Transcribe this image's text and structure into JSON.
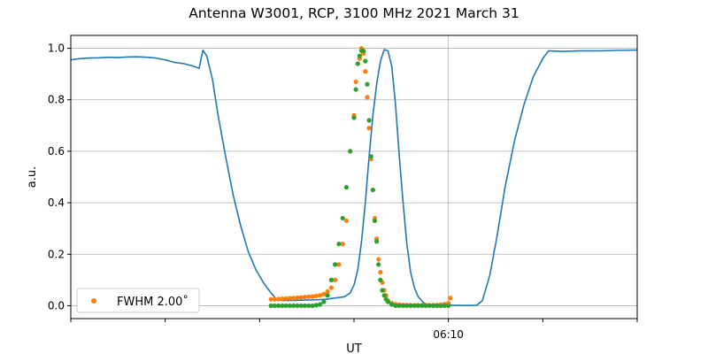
{
  "chart_data": {
    "type": "line",
    "title": "Antenna W3001, RCP, 3100 MHz 2021 March 31",
    "xlabel": "UT",
    "ylabel": "a.u.",
    "xlim_min": [
      0,
      30
    ],
    "ylim": [
      -0.05,
      1.05
    ],
    "yticks": [
      0.0,
      0.2,
      0.4,
      0.6,
      0.8,
      1.0
    ],
    "ytick_labels": [
      "0.0",
      "0.2",
      "0.4",
      "0.6",
      "0.8",
      "1.0"
    ],
    "xticks_min": [
      0,
      5,
      10,
      15,
      20,
      25,
      30
    ],
    "xtick_labels": [
      "",
      "",
      "",
      "",
      "06:10",
      "",
      ""
    ],
    "grid": true,
    "legend": {
      "placement": "lower-left",
      "label": "FWHM 2.00$^\\circ$",
      "label_text": "FWHM 2.00˚"
    },
    "colors": {
      "line": "#1f77b4",
      "dots_a": "#ff7f0e",
      "dots_b": "#2ca02c",
      "grid": "#b0b0b0"
    },
    "series": [
      {
        "kind": "line",
        "color": "#1f77b4",
        "points": [
          [
            0,
            0.955
          ],
          [
            0.5,
            0.96
          ],
          [
            1,
            0.962
          ],
          [
            1.5,
            0.963
          ],
          [
            2,
            0.965
          ],
          [
            2.5,
            0.964
          ],
          [
            3,
            0.966
          ],
          [
            3.5,
            0.967
          ],
          [
            4,
            0.965
          ],
          [
            4.5,
            0.962
          ],
          [
            5,
            0.955
          ],
          [
            5.5,
            0.945
          ],
          [
            6,
            0.94
          ],
          [
            6.5,
            0.93
          ],
          [
            6.8,
            0.922
          ],
          [
            6.9,
            0.96
          ],
          [
            7.0,
            0.992
          ],
          [
            7.2,
            0.97
          ],
          [
            7.5,
            0.88
          ],
          [
            7.8,
            0.74
          ],
          [
            8.2,
            0.58
          ],
          [
            8.6,
            0.43
          ],
          [
            9.0,
            0.31
          ],
          [
            9.4,
            0.21
          ],
          [
            9.8,
            0.14
          ],
          [
            10.2,
            0.09
          ],
          [
            10.6,
            0.05
          ],
          [
            10.9,
            0.025
          ],
          [
            11.2,
            0.02
          ],
          [
            12,
            0.021
          ],
          [
            13,
            0.023
          ],
          [
            13.5,
            0.025
          ],
          [
            14.0,
            0.03
          ],
          [
            14.5,
            0.035
          ],
          [
            14.8,
            0.05
          ],
          [
            15.0,
            0.08
          ],
          [
            15.2,
            0.14
          ],
          [
            15.4,
            0.25
          ],
          [
            15.6,
            0.4
          ],
          [
            15.8,
            0.58
          ],
          [
            16.0,
            0.74
          ],
          [
            16.2,
            0.86
          ],
          [
            16.4,
            0.95
          ],
          [
            16.6,
            0.995
          ],
          [
            16.8,
            0.99
          ],
          [
            17.0,
            0.93
          ],
          [
            17.2,
            0.78
          ],
          [
            17.4,
            0.58
          ],
          [
            17.6,
            0.4
          ],
          [
            17.8,
            0.24
          ],
          [
            18.0,
            0.13
          ],
          [
            18.2,
            0.07
          ],
          [
            18.4,
            0.035
          ],
          [
            18.7,
            0.01
          ],
          [
            19.0,
            0.004
          ],
          [
            20,
            0.002
          ],
          [
            21,
            0.001
          ],
          [
            21.5,
            0.002
          ],
          [
            21.8,
            0.02
          ],
          [
            22.2,
            0.12
          ],
          [
            22.6,
            0.28
          ],
          [
            23.0,
            0.46
          ],
          [
            23.5,
            0.64
          ],
          [
            24.0,
            0.78
          ],
          [
            24.5,
            0.89
          ],
          [
            25.0,
            0.96
          ],
          [
            25.3,
            0.99
          ],
          [
            26,
            0.988
          ],
          [
            27,
            0.99
          ],
          [
            28,
            0.99
          ],
          [
            29,
            0.992
          ],
          [
            30,
            0.993
          ]
        ]
      },
      {
        "kind": "dots",
        "color": "#ff7f0e",
        "points": [
          [
            10.6,
            0.025
          ],
          [
            10.8,
            0.025
          ],
          [
            11.0,
            0.026
          ],
          [
            11.2,
            0.027
          ],
          [
            11.4,
            0.028
          ],
          [
            11.6,
            0.029
          ],
          [
            11.8,
            0.03
          ],
          [
            12.0,
            0.031
          ],
          [
            12.2,
            0.032
          ],
          [
            12.4,
            0.034
          ],
          [
            12.6,
            0.035
          ],
          [
            12.8,
            0.036
          ],
          [
            13.0,
            0.038
          ],
          [
            13.2,
            0.04
          ],
          [
            13.4,
            0.045
          ],
          [
            13.6,
            0.055
          ],
          [
            13.8,
            0.07
          ],
          [
            14.0,
            0.1
          ],
          [
            14.2,
            0.16
          ],
          [
            14.4,
            0.24
          ],
          [
            14.6,
            0.33
          ],
          [
            14.8,
            0.6
          ],
          [
            15.0,
            0.74
          ],
          [
            15.1,
            0.87
          ],
          [
            15.3,
            0.96
          ],
          [
            15.4,
            1.0
          ],
          [
            15.5,
            0.98
          ],
          [
            15.6,
            0.91
          ],
          [
            15.7,
            0.81
          ],
          [
            15.8,
            0.69
          ],
          [
            15.9,
            0.57
          ],
          [
            16.0,
            0.45
          ],
          [
            16.1,
            0.34
          ],
          [
            16.2,
            0.26
          ],
          [
            16.3,
            0.18
          ],
          [
            16.4,
            0.13
          ],
          [
            16.5,
            0.09
          ],
          [
            16.6,
            0.06
          ],
          [
            16.7,
            0.04
          ],
          [
            16.8,
            0.02
          ],
          [
            17.0,
            0.01
          ],
          [
            17.2,
            0.006
          ],
          [
            17.4,
            0.004
          ],
          [
            17.6,
            0.003
          ],
          [
            17.8,
            0.002
          ],
          [
            18.0,
            0.002
          ],
          [
            18.2,
            0.002
          ],
          [
            18.4,
            0.002
          ],
          [
            18.6,
            0.002
          ],
          [
            18.8,
            0.002
          ],
          [
            19.0,
            0.002
          ],
          [
            19.2,
            0.002
          ],
          [
            19.4,
            0.003
          ],
          [
            19.6,
            0.004
          ],
          [
            19.8,
            0.006
          ],
          [
            20.0,
            0.01
          ],
          [
            20.1,
            0.03
          ]
        ]
      },
      {
        "kind": "dots",
        "color": "#2ca02c",
        "points": [
          [
            10.6,
            0.0
          ],
          [
            10.8,
            0.0
          ],
          [
            11.0,
            0.0
          ],
          [
            11.2,
            0.0
          ],
          [
            11.4,
            0.0
          ],
          [
            11.6,
            0.0
          ],
          [
            11.8,
            0.0
          ],
          [
            12.0,
            0.0
          ],
          [
            12.2,
            0.0
          ],
          [
            12.4,
            0.0
          ],
          [
            12.6,
            0.0
          ],
          [
            12.8,
            0.0
          ],
          [
            13.0,
            0.002
          ],
          [
            13.2,
            0.005
          ],
          [
            13.4,
            0.015
          ],
          [
            13.6,
            0.04
          ],
          [
            13.8,
            0.1
          ],
          [
            14.0,
            0.16
          ],
          [
            14.2,
            0.24
          ],
          [
            14.4,
            0.34
          ],
          [
            14.6,
            0.46
          ],
          [
            14.8,
            0.6
          ],
          [
            15.0,
            0.73
          ],
          [
            15.1,
            0.84
          ],
          [
            15.2,
            0.94
          ],
          [
            15.3,
            0.97
          ],
          [
            15.4,
            0.99
          ],
          [
            15.5,
            0.99
          ],
          [
            15.6,
            0.95
          ],
          [
            15.7,
            0.86
          ],
          [
            15.8,
            0.72
          ],
          [
            15.9,
            0.58
          ],
          [
            16.0,
            0.45
          ],
          [
            16.1,
            0.33
          ],
          [
            16.2,
            0.25
          ],
          [
            16.3,
            0.16
          ],
          [
            16.4,
            0.1
          ],
          [
            16.5,
            0.06
          ],
          [
            16.6,
            0.04
          ],
          [
            16.7,
            0.025
          ],
          [
            16.8,
            0.015
          ],
          [
            17.0,
            0.005
          ],
          [
            17.2,
            0.0
          ],
          [
            17.4,
            0.0
          ],
          [
            17.6,
            0.0
          ],
          [
            17.8,
            0.0
          ],
          [
            18.0,
            0.0
          ],
          [
            18.2,
            0.0
          ],
          [
            18.4,
            0.0
          ],
          [
            18.6,
            0.0
          ],
          [
            18.8,
            0.0
          ],
          [
            19.0,
            0.0
          ],
          [
            19.2,
            0.0
          ],
          [
            19.4,
            0.0
          ],
          [
            19.6,
            0.0
          ],
          [
            19.8,
            0.0
          ],
          [
            20.0,
            0.0
          ]
        ]
      }
    ]
  }
}
